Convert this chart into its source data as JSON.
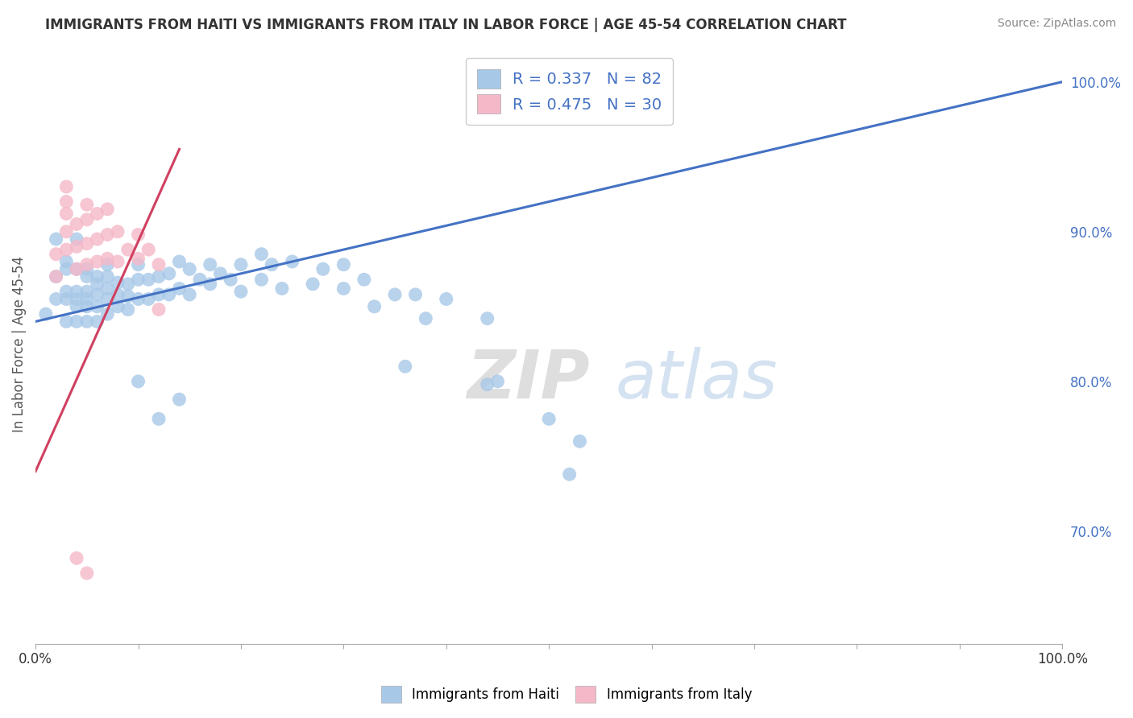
{
  "title": "IMMIGRANTS FROM HAITI VS IMMIGRANTS FROM ITALY IN LABOR FORCE | AGE 45-54 CORRELATION CHART",
  "source": "Source: ZipAtlas.com",
  "ylabel": "In Labor Force | Age 45-54",
  "ytick_labels": [
    "70.0%",
    "80.0%",
    "90.0%",
    "100.0%"
  ],
  "ytick_values": [
    0.7,
    0.8,
    0.9,
    1.0
  ],
  "xtick_labels": [
    "0.0%",
    "100.0%"
  ],
  "xlim": [
    0.0,
    1.0
  ],
  "ylim": [
    0.625,
    1.025
  ],
  "legend_haiti": "R = 0.337   N = 82",
  "legend_italy": "R = 0.475   N = 30",
  "haiti_color": "#a8c8e8",
  "italy_color": "#f5b8c8",
  "haiti_line_color": "#4472c4",
  "italy_line_color": "#d04060",
  "watermark_zip": "ZIP",
  "watermark_atlas": "atlas",
  "haiti_scatter": [
    [
      0.01,
      0.845
    ],
    [
      0.02,
      0.855
    ],
    [
      0.02,
      0.87
    ],
    [
      0.02,
      0.895
    ],
    [
      0.03,
      0.84
    ],
    [
      0.03,
      0.855
    ],
    [
      0.03,
      0.86
    ],
    [
      0.03,
      0.875
    ],
    [
      0.03,
      0.88
    ],
    [
      0.04,
      0.84
    ],
    [
      0.04,
      0.85
    ],
    [
      0.04,
      0.855
    ],
    [
      0.04,
      0.86
    ],
    [
      0.04,
      0.875
    ],
    [
      0.04,
      0.895
    ],
    [
      0.05,
      0.84
    ],
    [
      0.05,
      0.85
    ],
    [
      0.05,
      0.855
    ],
    [
      0.05,
      0.86
    ],
    [
      0.05,
      0.87
    ],
    [
      0.05,
      0.875
    ],
    [
      0.06,
      0.84
    ],
    [
      0.06,
      0.85
    ],
    [
      0.06,
      0.858
    ],
    [
      0.06,
      0.865
    ],
    [
      0.06,
      0.87
    ],
    [
      0.07,
      0.845
    ],
    [
      0.07,
      0.855
    ],
    [
      0.07,
      0.862
    ],
    [
      0.07,
      0.87
    ],
    [
      0.07,
      0.878
    ],
    [
      0.08,
      0.85
    ],
    [
      0.08,
      0.858
    ],
    [
      0.08,
      0.866
    ],
    [
      0.09,
      0.848
    ],
    [
      0.09,
      0.857
    ],
    [
      0.09,
      0.865
    ],
    [
      0.1,
      0.855
    ],
    [
      0.1,
      0.868
    ],
    [
      0.1,
      0.878
    ],
    [
      0.11,
      0.855
    ],
    [
      0.11,
      0.868
    ],
    [
      0.12,
      0.858
    ],
    [
      0.12,
      0.87
    ],
    [
      0.13,
      0.858
    ],
    [
      0.13,
      0.872
    ],
    [
      0.14,
      0.862
    ],
    [
      0.14,
      0.88
    ],
    [
      0.15,
      0.858
    ],
    [
      0.15,
      0.875
    ],
    [
      0.16,
      0.868
    ],
    [
      0.17,
      0.865
    ],
    [
      0.17,
      0.878
    ],
    [
      0.18,
      0.872
    ],
    [
      0.19,
      0.868
    ],
    [
      0.2,
      0.86
    ],
    [
      0.2,
      0.878
    ],
    [
      0.22,
      0.868
    ],
    [
      0.22,
      0.885
    ],
    [
      0.23,
      0.878
    ],
    [
      0.24,
      0.862
    ],
    [
      0.25,
      0.88
    ],
    [
      0.27,
      0.865
    ],
    [
      0.28,
      0.875
    ],
    [
      0.3,
      0.862
    ],
    [
      0.3,
      0.878
    ],
    [
      0.32,
      0.868
    ],
    [
      0.33,
      0.85
    ],
    [
      0.35,
      0.858
    ],
    [
      0.36,
      0.81
    ],
    [
      0.37,
      0.858
    ],
    [
      0.38,
      0.842
    ],
    [
      0.4,
      0.855
    ],
    [
      0.44,
      0.798
    ],
    [
      0.44,
      0.842
    ],
    [
      0.45,
      0.8
    ],
    [
      0.5,
      0.775
    ],
    [
      0.52,
      0.738
    ],
    [
      0.53,
      0.76
    ],
    [
      0.1,
      0.8
    ],
    [
      0.12,
      0.775
    ],
    [
      0.14,
      0.788
    ]
  ],
  "italy_scatter": [
    [
      0.02,
      0.87
    ],
    [
      0.02,
      0.885
    ],
    [
      0.03,
      0.888
    ],
    [
      0.03,
      0.9
    ],
    [
      0.03,
      0.912
    ],
    [
      0.03,
      0.92
    ],
    [
      0.03,
      0.93
    ],
    [
      0.04,
      0.875
    ],
    [
      0.04,
      0.89
    ],
    [
      0.04,
      0.905
    ],
    [
      0.05,
      0.878
    ],
    [
      0.05,
      0.892
    ],
    [
      0.05,
      0.908
    ],
    [
      0.05,
      0.918
    ],
    [
      0.06,
      0.88
    ],
    [
      0.06,
      0.895
    ],
    [
      0.06,
      0.912
    ],
    [
      0.07,
      0.882
    ],
    [
      0.07,
      0.898
    ],
    [
      0.07,
      0.915
    ],
    [
      0.08,
      0.88
    ],
    [
      0.08,
      0.9
    ],
    [
      0.09,
      0.888
    ],
    [
      0.1,
      0.882
    ],
    [
      0.1,
      0.898
    ],
    [
      0.11,
      0.888
    ],
    [
      0.12,
      0.848
    ],
    [
      0.12,
      0.878
    ],
    [
      0.04,
      0.682
    ],
    [
      0.05,
      0.672
    ]
  ],
  "haiti_line": [
    0.0,
    0.84,
    1.0,
    1.0
  ],
  "italy_line": [
    0.0,
    0.74,
    0.14,
    0.955
  ]
}
